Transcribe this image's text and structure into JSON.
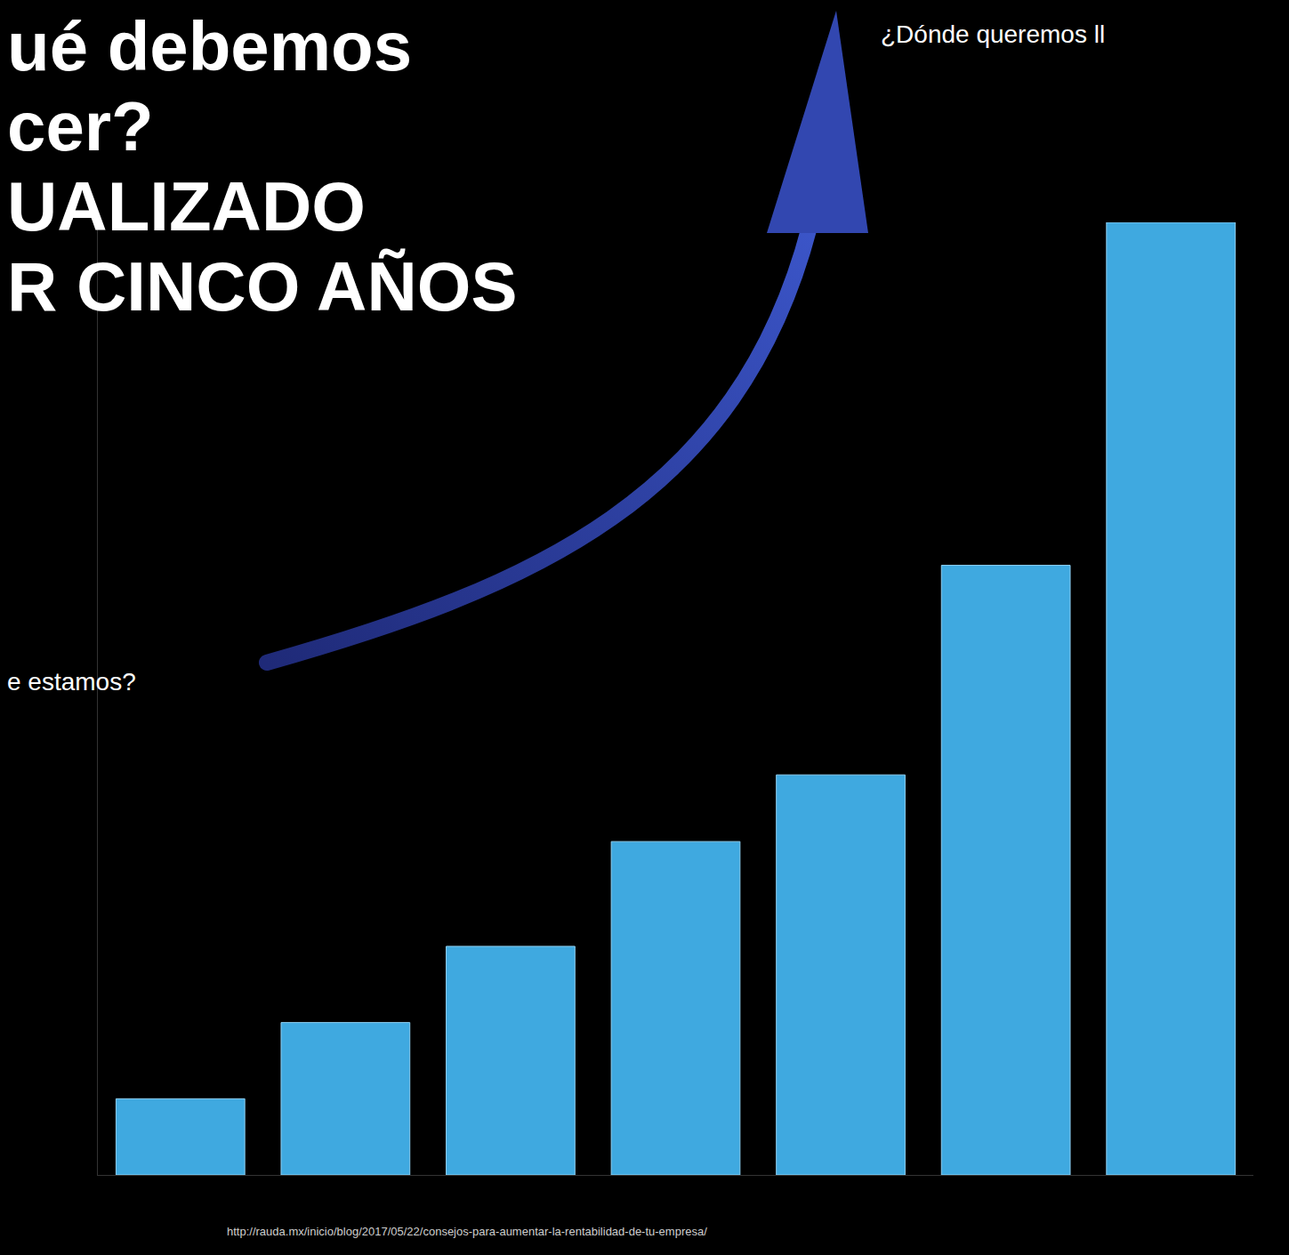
{
  "chart_data": {
    "type": "bar",
    "categories": [
      null,
      null,
      null,
      null,
      null,
      null,
      null
    ],
    "values": [
      8,
      16,
      24,
      35,
      42,
      64,
      100
    ],
    "color": "#3fa9e0",
    "ylim": [
      0,
      100
    ],
    "grid": false,
    "tick_labels": false,
    "annotations": [
      "ué debemos",
      "cer?",
      "UALIZADO",
      "R CINCO AÑOS",
      "¿Dónde queremos ll",
      "e estamos?",
      "http://rauda.mx/inicio/blog/2017/05/22/consejos-para-aumentar-la-rentabilidad-de-tu-empresa/"
    ]
  }
}
